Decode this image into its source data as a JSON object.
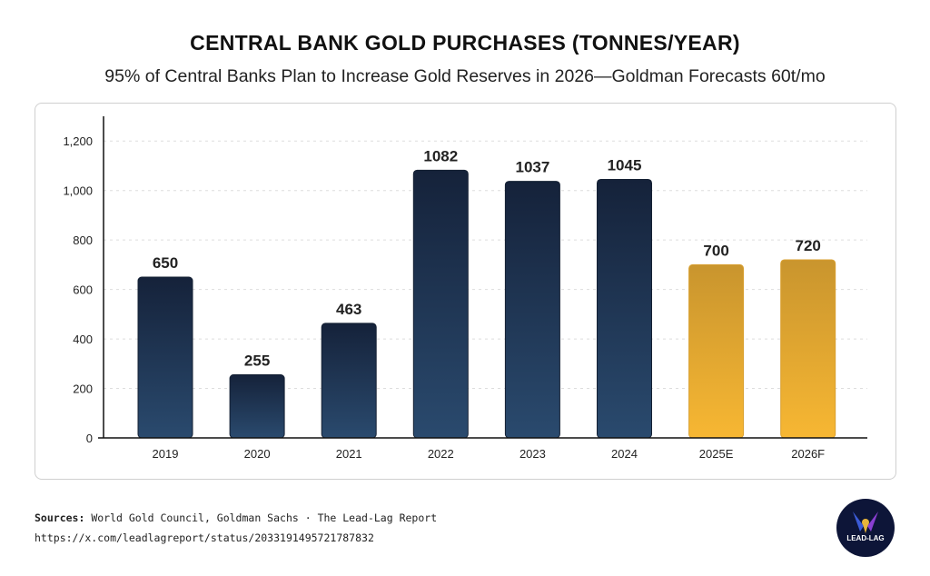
{
  "header": {
    "title": "CENTRAL BANK GOLD PURCHASES (TONNES/YEAR)",
    "subtitle": "95% of Central Banks Plan to Increase Gold Reserves in 2026—Goldman Forecasts 60t/mo"
  },
  "chart_data": {
    "type": "bar",
    "title": "CENTRAL BANK GOLD PURCHASES (TONNES/YEAR)",
    "categories": [
      "2019",
      "2020",
      "2021",
      "2022",
      "2023",
      "2024",
      "2025E",
      "2026F"
    ],
    "values": [
      650,
      255,
      463,
      1082,
      1037,
      1045,
      700,
      720
    ],
    "data_labels": [
      "650",
      "255",
      "463",
      "1082",
      "1037",
      "1045",
      "700",
      "720"
    ],
    "kinds": [
      "actual",
      "actual",
      "actual",
      "actual",
      "actual",
      "actual",
      "forecast",
      "forecast"
    ],
    "ylim": [
      0,
      1300
    ],
    "yticks": [
      0,
      200,
      400,
      600,
      800,
      1000,
      1200
    ],
    "ytick_labels": [
      "0",
      "200",
      "400",
      "600",
      "800",
      "1,000",
      "1,200"
    ],
    "xlabel": "",
    "ylabel": "",
    "grid": true,
    "colors": {
      "actual_top": "#15223a",
      "actual_bottom": "#2a4a6e",
      "forecast_top": "#c9952e",
      "forecast_bottom": "#f7b733"
    }
  },
  "footer": {
    "sources_label": "Sources:",
    "sources_text": " World Gold Council, Goldman Sachs · The Lead-Lag Report",
    "url": "https://x.com/leadlagreport/status/2033191495721787832",
    "logo_text": "LEAD-LAG"
  }
}
